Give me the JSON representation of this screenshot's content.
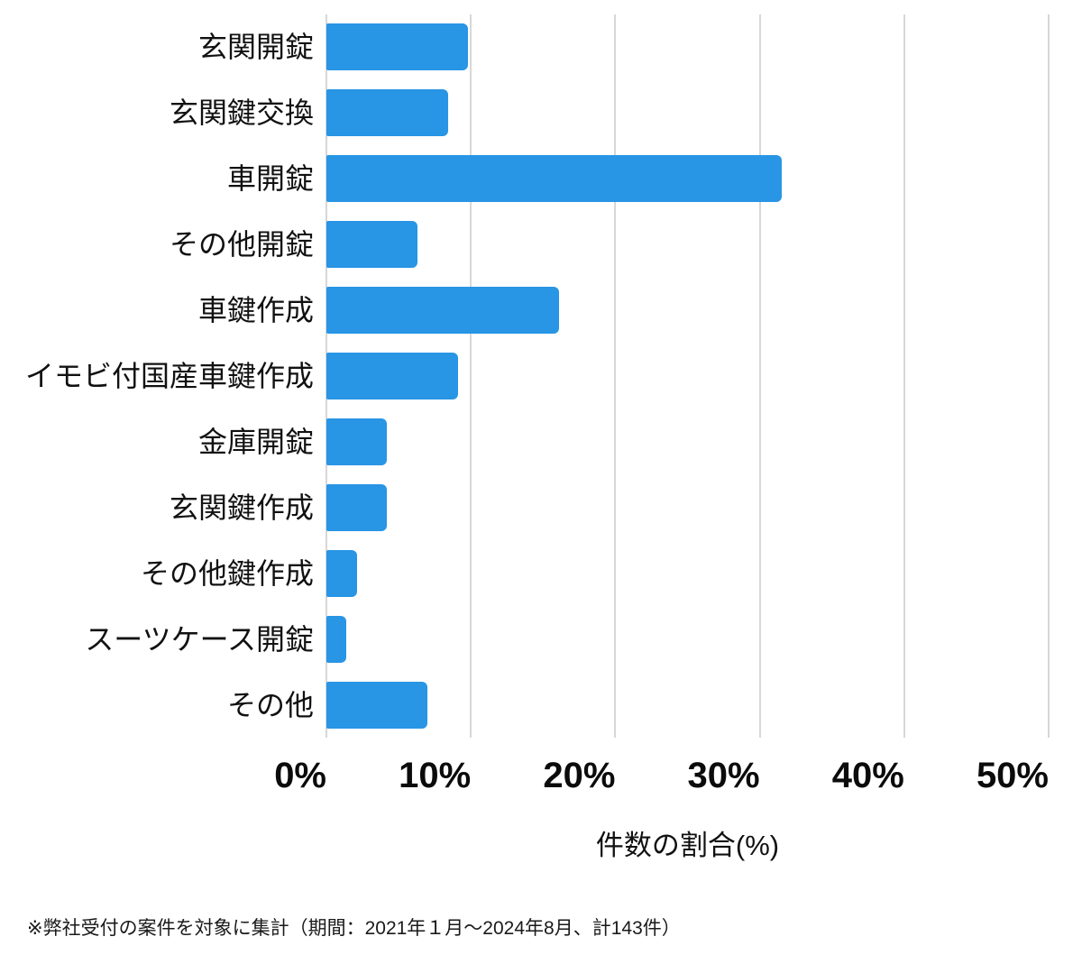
{
  "colors": {
    "bar": "#2895e5",
    "gridline": "#d7d7d7",
    "text": "#111111"
  },
  "chart_data": {
    "type": "bar",
    "orientation": "horizontal",
    "title": "",
    "xlabel": "件数の割合(%)",
    "ylabel": "",
    "categories": [
      "玄関開錠",
      "玄関鍵交換",
      "車開錠",
      "その他開錠",
      "車鍵作成",
      "イモビ付国産車鍵作成",
      "金庫開錠",
      "玄関鍵作成",
      "その他鍵作成",
      "スーツケース開錠",
      "その他"
    ],
    "values": [
      9.8,
      8.4,
      31.5,
      6.3,
      16.1,
      9.1,
      4.2,
      4.2,
      2.1,
      1.4,
      7.0
    ],
    "xlim": [
      0,
      50
    ],
    "x_tick_values": [
      0,
      10,
      20,
      30,
      40,
      50
    ],
    "x_tick_labels": [
      "0%",
      "10%",
      "20%",
      "30%",
      "40%",
      "50%"
    ],
    "grid": true,
    "legend": "none"
  },
  "footnote": "※弊社受付の案件を対象に集計（期間：2021年１月～2024年8月、計143件）"
}
